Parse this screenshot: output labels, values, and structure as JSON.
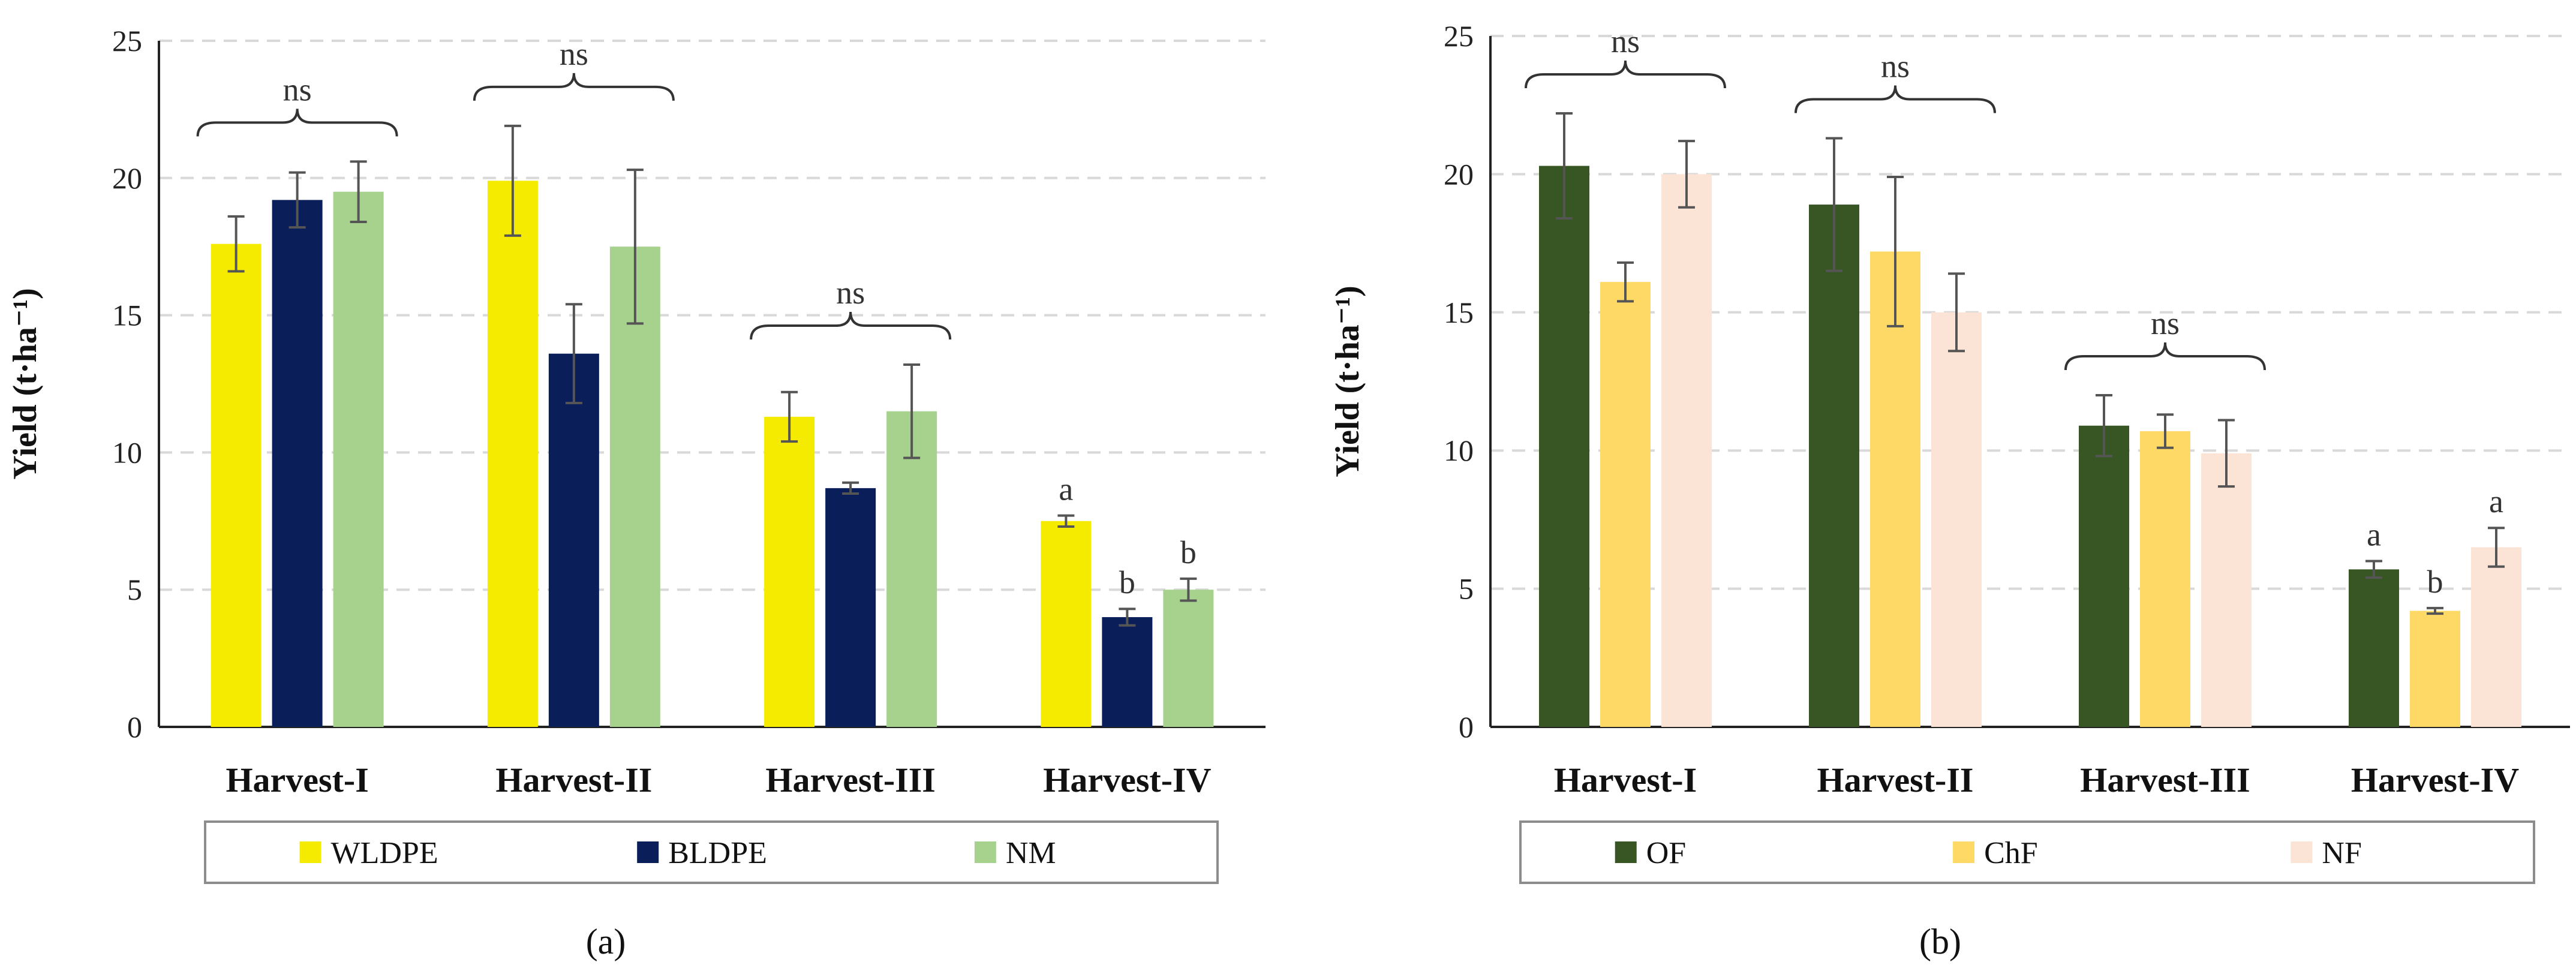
{
  "chart_data": [
    {
      "type": "bar",
      "panel_label": "(a)",
      "ylabel": "Yield (t·ha⁻¹)",
      "ylim": [
        0,
        25
      ],
      "yticks": [
        0,
        5,
        10,
        15,
        20,
        25
      ],
      "grid": "horizontal dashed",
      "legend_position": "bottom",
      "categories": [
        "Harvest-I",
        "Harvest-II",
        "Harvest-III",
        "Harvest-IV"
      ],
      "series": [
        {
          "name": "WLDPE",
          "color": "#F5EB00",
          "values": [
            17.6,
            19.9,
            11.3,
            7.5
          ],
          "errors": [
            1.0,
            2.0,
            0.9,
            0.2
          ],
          "labels": [
            "",
            "",
            "",
            "a"
          ]
        },
        {
          "name": "BLDPE",
          "color": "#0A1E5A",
          "values": [
            19.2,
            13.6,
            8.7,
            4.0
          ],
          "errors": [
            1.0,
            1.8,
            0.2,
            0.3
          ],
          "labels": [
            "",
            "",
            "",
            "b"
          ]
        },
        {
          "name": "NM",
          "color": "#A6D28E",
          "values": [
            19.5,
            17.5,
            11.5,
            5.0
          ],
          "errors": [
            1.1,
            2.8,
            1.7,
            0.4
          ],
          "labels": [
            "",
            "",
            "",
            "b"
          ]
        }
      ],
      "group_annotations": [
        "ns",
        "ns",
        "ns",
        ""
      ]
    },
    {
      "type": "bar",
      "panel_label": "(b)",
      "ylabel": "Yield (t·ha⁻¹)",
      "ylim": [
        0,
        25
      ],
      "yticks": [
        0,
        5,
        10,
        15,
        20,
        25
      ],
      "grid": "horizontal dashed",
      "legend_position": "bottom",
      "categories": [
        "Harvest-I",
        "Harvest-II",
        "Harvest-III",
        "Harvest-IV"
      ],
      "series": [
        {
          "name": "OF",
          "color": "#375623",
          "values": [
            20.3,
            18.9,
            10.9,
            5.7
          ],
          "errors": [
            1.9,
            2.4,
            1.1,
            0.3
          ],
          "labels": [
            "",
            "",
            "",
            "a"
          ]
        },
        {
          "name": "ChF",
          "color": "#FFD966",
          "values": [
            16.1,
            17.2,
            10.7,
            4.2
          ],
          "errors": [
            0.7,
            2.7,
            0.6,
            0.1
          ],
          "labels": [
            "",
            "",
            "",
            "b"
          ]
        },
        {
          "name": "NF",
          "color": "#FBE3D6",
          "values": [
            20.0,
            15.0,
            9.9,
            6.5
          ],
          "errors": [
            1.2,
            1.4,
            1.2,
            0.7
          ],
          "labels": [
            "",
            "",
            "",
            "a"
          ]
        }
      ],
      "group_annotations": [
        "ns",
        "ns",
        "ns",
        ""
      ]
    }
  ]
}
